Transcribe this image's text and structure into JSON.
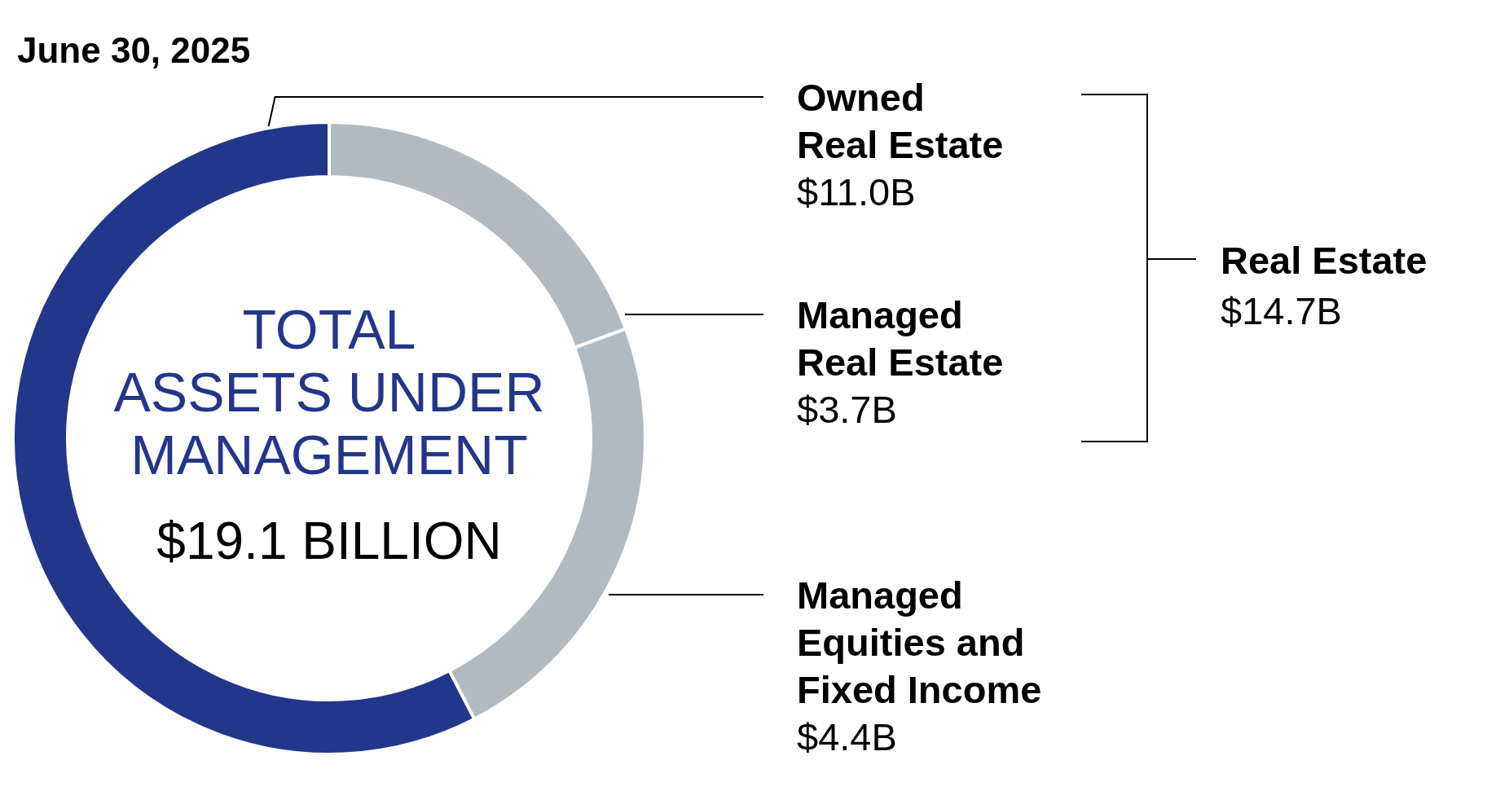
{
  "chart_data": {
    "type": "donut",
    "title": "TOTAL ASSETS UNDER MANAGEMENT",
    "subtitle": "June 30, 2025",
    "categories": [
      "Managed Real Estate",
      "Managed Equities and Fixed Income",
      "Owned Real Estate"
    ],
    "values": [
      3.7,
      4.4,
      11.0
    ],
    "colors": [
      "#b2bac1",
      "#b2bac1",
      "#22378a"
    ],
    "value_labels": [
      "$3.7B",
      "$4.4B",
      "$11.0B"
    ],
    "annotations": [
      "$19.1 BILLION",
      "Real Estate",
      "$14.7B"
    ]
  }
}
